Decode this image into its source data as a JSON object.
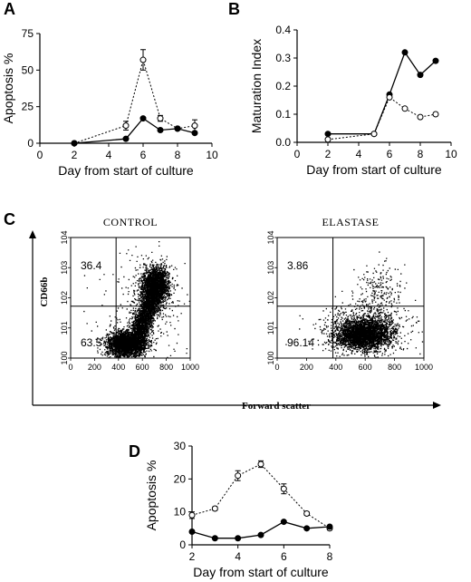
{
  "chart_data": [
    {
      "panel": "A",
      "type": "line",
      "xlabel": "Day from start of culture",
      "ylabel": "Apoptosis %",
      "xlim": [
        0,
        10
      ],
      "ylim": [
        0,
        75
      ],
      "xticks": [
        0,
        2,
        4,
        6,
        8,
        10
      ],
      "yticks": [
        0,
        25,
        50,
        75
      ],
      "series": [
        {
          "marker": "open",
          "line": "dotted",
          "x": [
            2,
            5,
            6,
            7,
            8,
            9
          ],
          "y": [
            0,
            12,
            57,
            17,
            10,
            12
          ],
          "err": [
            0,
            3,
            7,
            2,
            1,
            4
          ]
        },
        {
          "marker": "filled",
          "line": "solid",
          "x": [
            2,
            5,
            6,
            7,
            8,
            9
          ],
          "y": [
            0,
            3,
            17,
            9,
            10,
            7
          ],
          "err": [
            0,
            0,
            0,
            0,
            0,
            0
          ]
        }
      ]
    },
    {
      "panel": "B",
      "type": "line",
      "xlabel": "Day from start of culture",
      "ylabel": "Maturation Index",
      "xlim": [
        0,
        10
      ],
      "ylim": [
        0,
        0.4
      ],
      "xticks": [
        0,
        2,
        4,
        6,
        8,
        10
      ],
      "yticks": [
        0.0,
        0.1,
        0.2,
        0.3,
        0.4
      ],
      "series": [
        {
          "marker": "filled",
          "line": "solid",
          "x": [
            2,
            5,
            6,
            7,
            8,
            9
          ],
          "y": [
            0.03,
            0.03,
            0.17,
            0.32,
            0.24,
            0.29
          ]
        },
        {
          "marker": "open",
          "line": "dotted",
          "x": [
            2,
            5,
            6,
            7,
            8,
            9
          ],
          "y": [
            0.01,
            0.03,
            0.16,
            0.12,
            0.09,
            0.1
          ]
        }
      ]
    },
    {
      "panel": "C",
      "type": "scatter",
      "xlabel": "Forward scatter",
      "ylabel": "CD66b",
      "xticks": [
        0,
        200,
        400,
        600,
        800,
        1000
      ],
      "yticks_exp": [
        "0",
        "1",
        "2",
        "3",
        "4"
      ],
      "ytick_base": "10",
      "plots": [
        {
          "title": "CONTROL",
          "upper": "36.4",
          "lower": "63.5"
        },
        {
          "title": "ELASTASE",
          "upper": "3.86",
          "lower": "96.14"
        }
      ]
    },
    {
      "panel": "D",
      "type": "line",
      "xlabel": "Day from start of culture",
      "ylabel": "Apoptosis %",
      "xlim": [
        2,
        8
      ],
      "ylim": [
        0,
        30
      ],
      "xticks": [
        2,
        4,
        6,
        8
      ],
      "yticks": [
        0,
        10,
        20,
        30
      ],
      "series": [
        {
          "marker": "open",
          "line": "dotted",
          "x": [
            2,
            3,
            4,
            5,
            6,
            7,
            8
          ],
          "y": [
            9,
            11,
            21,
            24.5,
            17,
            9.5,
            5
          ],
          "err": [
            1,
            0.5,
            1.5,
            1,
            1.5,
            0.5,
            0.5
          ]
        },
        {
          "marker": "filled",
          "line": "solid",
          "x": [
            2,
            3,
            4,
            5,
            6,
            7,
            8
          ],
          "y": [
            4,
            2,
            2,
            3,
            7,
            5,
            5.5
          ],
          "err": [
            0,
            0,
            0,
            0,
            0,
            0,
            0
          ]
        }
      ]
    }
  ]
}
